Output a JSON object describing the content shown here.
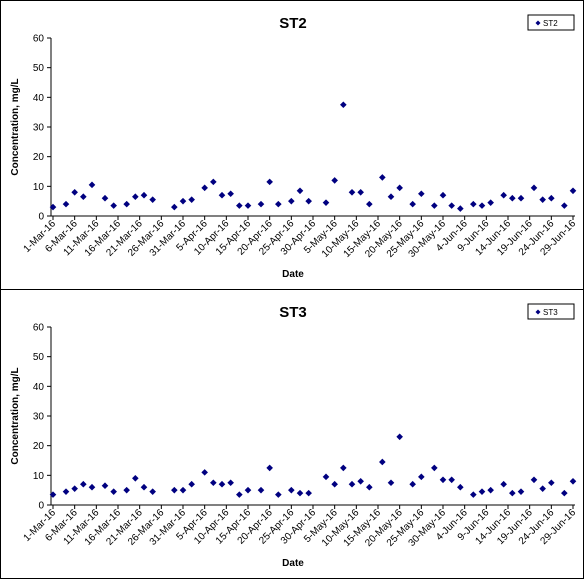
{
  "chart_data": [
    {
      "type": "scatter",
      "title": "ST2",
      "xlabel": "Date",
      "ylabel": "Concentration, mg/L",
      "ylim": [
        0,
        60
      ],
      "yticks": [
        "0",
        "10",
        "20",
        "30",
        "40",
        "50",
        "60"
      ],
      "x_range": [
        "1-Mar-16",
        "29-Jun-16"
      ],
      "xticks": [
        "1-Mar-16",
        "6-Mar-16",
        "11-Mar-16",
        "16-Mar-16",
        "21-Mar-16",
        "26-Mar-16",
        "31-Mar-16",
        "5-Apr-16",
        "10-Apr-16",
        "15-Apr-16",
        "20-Apr-16",
        "25-Apr-16",
        "30-Apr-16",
        "5-May-16",
        "10-May-16",
        "15-May-16",
        "20-May-16",
        "25-May-16",
        "30-May-16",
        "4-Jun-16",
        "9-Jun-16",
        "14-Jun-16",
        "19-Jun-16",
        "24-Jun-16",
        "29-Jun-16"
      ],
      "legend_position": "top-right",
      "grid": false,
      "series": [
        {
          "name": "ST2",
          "color": "#000080",
          "marker": "diamond",
          "points": [
            {
              "x": "1-Mar-16",
              "y": 3.0
            },
            {
              "x": "4-Mar-16",
              "y": 4.0
            },
            {
              "x": "6-Mar-16",
              "y": 8.0
            },
            {
              "x": "8-Mar-16",
              "y": 6.5
            },
            {
              "x": "10-Mar-16",
              "y": 10.5
            },
            {
              "x": "13-Mar-16",
              "y": 6.0
            },
            {
              "x": "15-Mar-16",
              "y": 3.5
            },
            {
              "x": "18-Mar-16",
              "y": 4.0
            },
            {
              "x": "20-Mar-16",
              "y": 6.5
            },
            {
              "x": "22-Mar-16",
              "y": 7.0
            },
            {
              "x": "24-Mar-16",
              "y": 5.5
            },
            {
              "x": "29-Mar-16",
              "y": 3.0
            },
            {
              "x": "31-Mar-16",
              "y": 5.0
            },
            {
              "x": "2-Apr-16",
              "y": 5.5
            },
            {
              "x": "5-Apr-16",
              "y": 9.5
            },
            {
              "x": "7-Apr-16",
              "y": 11.5
            },
            {
              "x": "9-Apr-16",
              "y": 7.0
            },
            {
              "x": "11-Apr-16",
              "y": 7.5
            },
            {
              "x": "13-Apr-16",
              "y": 3.5
            },
            {
              "x": "15-Apr-16",
              "y": 3.5
            },
            {
              "x": "18-Apr-16",
              "y": 4.0
            },
            {
              "x": "20-Apr-16",
              "y": 11.5
            },
            {
              "x": "22-Apr-16",
              "y": 4.0
            },
            {
              "x": "25-Apr-16",
              "y": 5.0
            },
            {
              "x": "27-Apr-16",
              "y": 8.5
            },
            {
              "x": "29-Apr-16",
              "y": 5.0
            },
            {
              "x": "3-May-16",
              "y": 4.5
            },
            {
              "x": "5-May-16",
              "y": 12.0
            },
            {
              "x": "7-May-16",
              "y": 37.5
            },
            {
              "x": "9-May-16",
              "y": 8.0
            },
            {
              "x": "11-May-16",
              "y": 8.0
            },
            {
              "x": "13-May-16",
              "y": 4.0
            },
            {
              "x": "16-May-16",
              "y": 13.0
            },
            {
              "x": "18-May-16",
              "y": 6.5
            },
            {
              "x": "20-May-16",
              "y": 9.5
            },
            {
              "x": "23-May-16",
              "y": 4.0
            },
            {
              "x": "25-May-16",
              "y": 7.5
            },
            {
              "x": "28-May-16",
              "y": 3.5
            },
            {
              "x": "30-May-16",
              "y": 7.0
            },
            {
              "x": "1-Jun-16",
              "y": 3.5
            },
            {
              "x": "3-Jun-16",
              "y": 2.5
            },
            {
              "x": "6-Jun-16",
              "y": 4.0
            },
            {
              "x": "8-Jun-16",
              "y": 3.5
            },
            {
              "x": "10-Jun-16",
              "y": 4.5
            },
            {
              "x": "13-Jun-16",
              "y": 7.0
            },
            {
              "x": "15-Jun-16",
              "y": 6.0
            },
            {
              "x": "17-Jun-16",
              "y": 6.0
            },
            {
              "x": "20-Jun-16",
              "y": 9.5
            },
            {
              "x": "22-Jun-16",
              "y": 5.5
            },
            {
              "x": "24-Jun-16",
              "y": 6.0
            },
            {
              "x": "27-Jun-16",
              "y": 3.5
            },
            {
              "x": "29-Jun-16",
              "y": 8.5
            }
          ]
        }
      ]
    },
    {
      "type": "scatter",
      "title": "ST3",
      "xlabel": "Date",
      "ylabel": "Concentration, mg/L",
      "ylim": [
        0,
        60
      ],
      "yticks": [
        "0",
        "10",
        "20",
        "30",
        "40",
        "50",
        "60"
      ],
      "x_range": [
        "1-Mar-16",
        "29-Jun-16"
      ],
      "xticks": [
        "1-Mar-16",
        "6-Mar-16",
        "11-Mar-16",
        "16-Mar-16",
        "21-Mar-16",
        "26-Mar-16",
        "31-Mar-16",
        "5-Apr-16",
        "10-Apr-16",
        "15-Apr-16",
        "20-Apr-16",
        "25-Apr-16",
        "30-Apr-16",
        "5-May-16",
        "10-May-16",
        "15-May-16",
        "20-May-16",
        "25-May-16",
        "30-May-16",
        "4-Jun-16",
        "9-Jun-16",
        "14-Jun-16",
        "19-Jun-16",
        "24-Jun-16",
        "29-Jun-16"
      ],
      "legend_position": "top-right",
      "grid": false,
      "series": [
        {
          "name": "ST3",
          "color": "#000080",
          "marker": "diamond",
          "points": [
            {
              "x": "1-Mar-16",
              "y": 3.5
            },
            {
              "x": "4-Mar-16",
              "y": 4.5
            },
            {
              "x": "6-Mar-16",
              "y": 5.5
            },
            {
              "x": "8-Mar-16",
              "y": 7.0
            },
            {
              "x": "10-Mar-16",
              "y": 6.0
            },
            {
              "x": "13-Mar-16",
              "y": 6.5
            },
            {
              "x": "15-Mar-16",
              "y": 4.5
            },
            {
              "x": "18-Mar-16",
              "y": 5.0
            },
            {
              "x": "20-Mar-16",
              "y": 9.0
            },
            {
              "x": "22-Mar-16",
              "y": 6.0
            },
            {
              "x": "24-Mar-16",
              "y": 4.5
            },
            {
              "x": "29-Mar-16",
              "y": 5.0
            },
            {
              "x": "31-Mar-16",
              "y": 5.0
            },
            {
              "x": "2-Apr-16",
              "y": 7.0
            },
            {
              "x": "5-Apr-16",
              "y": 11.0
            },
            {
              "x": "7-Apr-16",
              "y": 7.5
            },
            {
              "x": "9-Apr-16",
              "y": 7.0
            },
            {
              "x": "11-Apr-16",
              "y": 7.5
            },
            {
              "x": "13-Apr-16",
              "y": 3.5
            },
            {
              "x": "15-Apr-16",
              "y": 5.0
            },
            {
              "x": "18-Apr-16",
              "y": 5.0
            },
            {
              "x": "20-Apr-16",
              "y": 12.5
            },
            {
              "x": "22-Apr-16",
              "y": 3.5
            },
            {
              "x": "25-Apr-16",
              "y": 5.0
            },
            {
              "x": "27-Apr-16",
              "y": 4.0
            },
            {
              "x": "29-Apr-16",
              "y": 4.0
            },
            {
              "x": "3-May-16",
              "y": 9.5
            },
            {
              "x": "5-May-16",
              "y": 7.0
            },
            {
              "x": "7-May-16",
              "y": 12.5
            },
            {
              "x": "9-May-16",
              "y": 7.0
            },
            {
              "x": "11-May-16",
              "y": 8.0
            },
            {
              "x": "13-May-16",
              "y": 6.0
            },
            {
              "x": "16-May-16",
              "y": 14.5
            },
            {
              "x": "18-May-16",
              "y": 7.5
            },
            {
              "x": "20-May-16",
              "y": 23.0
            },
            {
              "x": "23-May-16",
              "y": 7.0
            },
            {
              "x": "25-May-16",
              "y": 9.5
            },
            {
              "x": "28-May-16",
              "y": 12.5
            },
            {
              "x": "30-May-16",
              "y": 8.5
            },
            {
              "x": "1-Jun-16",
              "y": 8.5
            },
            {
              "x": "3-Jun-16",
              "y": 6.0
            },
            {
              "x": "6-Jun-16",
              "y": 3.5
            },
            {
              "x": "8-Jun-16",
              "y": 4.5
            },
            {
              "x": "10-Jun-16",
              "y": 5.0
            },
            {
              "x": "13-Jun-16",
              "y": 7.0
            },
            {
              "x": "15-Jun-16",
              "y": 4.0
            },
            {
              "x": "17-Jun-16",
              "y": 4.5
            },
            {
              "x": "20-Jun-16",
              "y": 8.5
            },
            {
              "x": "22-Jun-16",
              "y": 5.5
            },
            {
              "x": "24-Jun-16",
              "y": 7.5
            },
            {
              "x": "27-Jun-16",
              "y": 4.0
            },
            {
              "x": "29-Jun-16",
              "y": 8.0
            }
          ]
        }
      ]
    }
  ]
}
